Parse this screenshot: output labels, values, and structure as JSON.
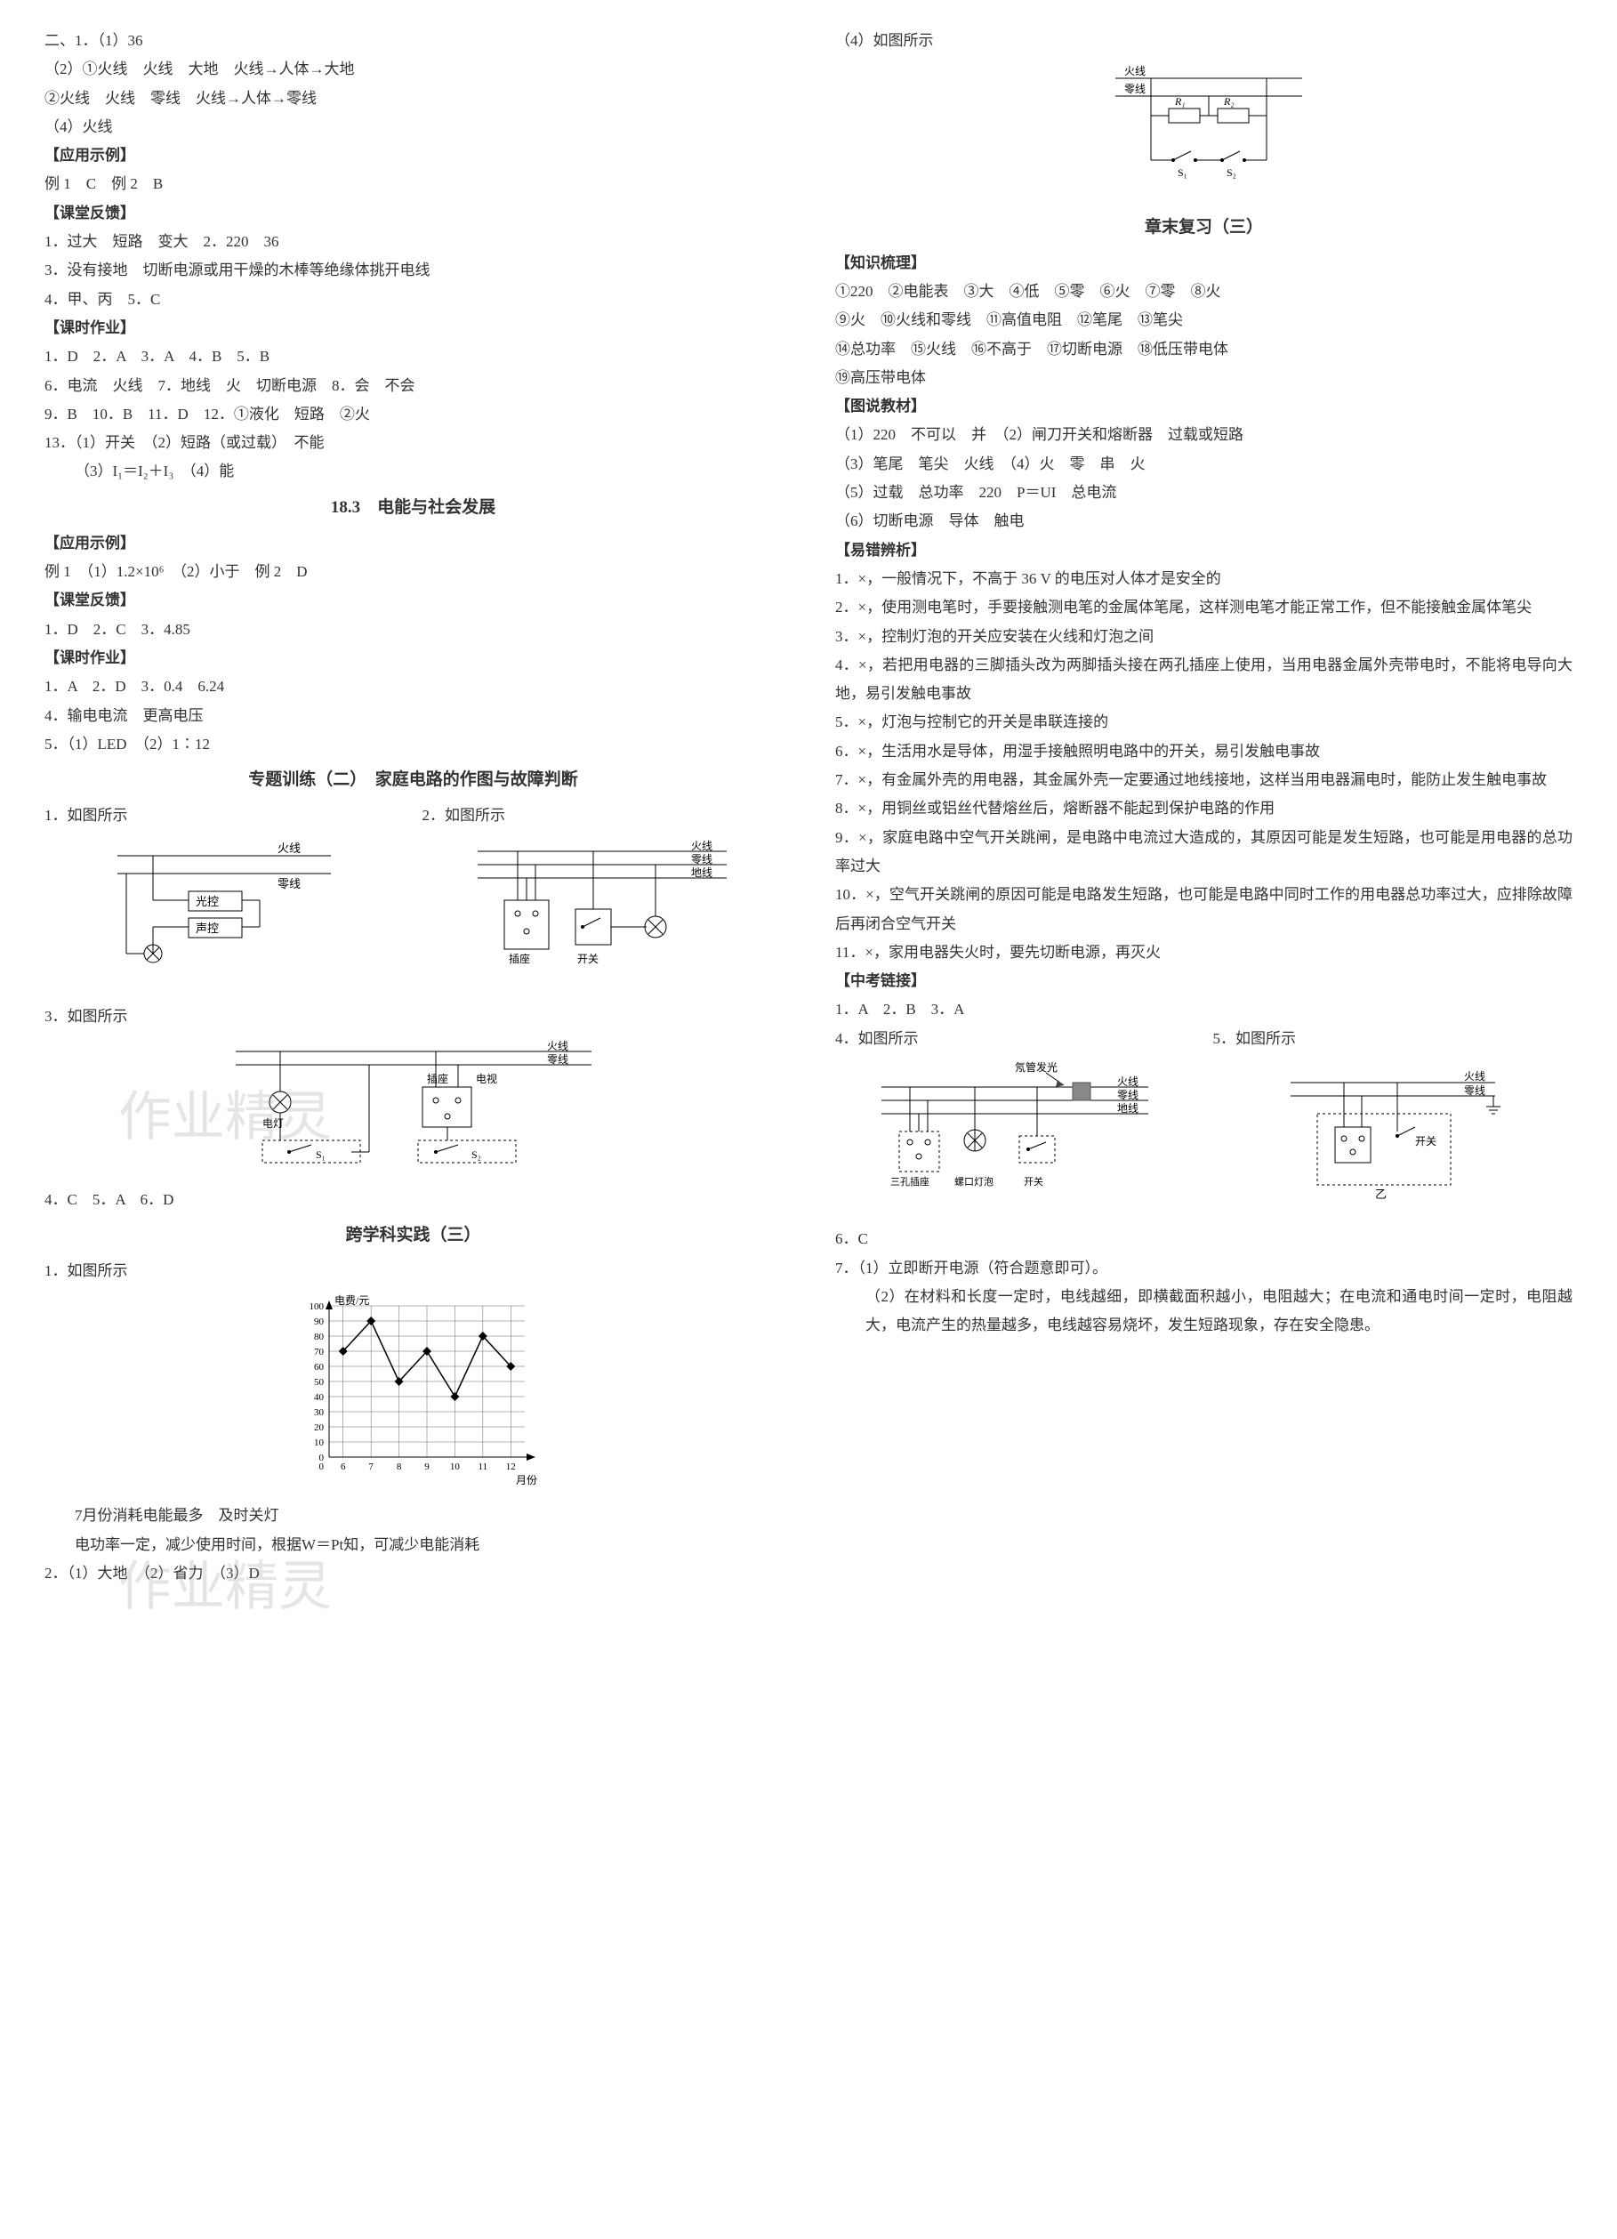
{
  "left": {
    "block1": [
      "二、1．（1）36",
      "（2）①火线　火线　大地　火线→人体→大地",
      "②火线　火线　零线　火线→人体→零线",
      "（4）火线"
    ],
    "yingyong1_head": "【应用示例】",
    "yingyong1_body": "例 1　C　例 2　B",
    "ketang1_head": "【课堂反馈】",
    "ketang1_lines": [
      "1．过大　短路　变大　2．220　36",
      "3．没有接地　切断电源或用干燥的木棒等绝缘体挑开电线",
      "4．甲、丙　5．C"
    ],
    "keshi1_head": "【课时作业】",
    "keshi1_lines": [
      "1．D　2．A　3．A　4．B　5．B",
      "6．电流　火线　7．地线　火　切断电源　8．会　不会",
      "9．B　10．B　11．D　12．①液化　短路　②火",
      "13．（1）开关　（2）短路（或过载）　不能",
      "（3）I₁＝I₂＋I₃　（4）能"
    ],
    "title183": "18.3　电能与社会发展",
    "yingyong2_head": "【应用示例】",
    "yingyong2_body": "例 1　（1）1.2×10⁶　（2）小于　例 2　D",
    "ketang2_head": "【课堂反馈】",
    "ketang2_body": "1．D　2．C　3．4.85",
    "keshi2_head": "【课时作业】",
    "keshi2_lines": [
      "1．A　2．D　3．0.4　6.24",
      "4．输电电流　更高电压",
      "5．（1）LED　（2）1∶12"
    ],
    "title_zt2": "专题训练（二）　家庭电路的作图与故障判断",
    "q1": "1．如图所示",
    "q2": "2．如图所示",
    "q3": "3．如图所示",
    "q4line": "4．C　5．A　6．D",
    "title_kxk3": "跨学科实践（三）",
    "kxk_q1": "1．如图所示",
    "kxk_notes": [
      "7月份消耗电能最多　及时关灯",
      "电功率一定，减少使用时间，根据W＝Pt知，可减少电能消耗"
    ],
    "kxk_q2": "2．（1）大地　（2）省力　（3）D"
  },
  "right": {
    "q4": "（4）如图所示",
    "title_zm3": "章末复习（三）",
    "zhishi_head": "【知识梳理】",
    "zhishi_lines": [
      "①220　②电能表　③大　④低　⑤零　⑥火　⑦零　⑧火",
      "⑨火　⑩火线和零线　⑪高值电阻　⑫笔尾　⑬笔尖",
      "⑭总功率　⑮火线　⑯不高于　⑰切断电源　⑱低压带电体",
      "⑲高压带电体"
    ],
    "tushuo_head": "【图说教材】",
    "tushuo_lines": [
      "（1）220　不可以　并　（2）闸刀开关和熔断器　过载或短路",
      "（3）笔尾　笔尖　火线　（4）火　零　串　火",
      "（5）过载　总功率　220　P＝UI　总电流",
      "（6）切断电源　导体　触电"
    ],
    "yicuo_head": "【易错辨析】",
    "yicuo_items": [
      {
        "n": "1．",
        "mark": "×",
        "t": "，一般情况下，不高于 36 V 的电压对人体才是安全的"
      },
      {
        "n": "2．",
        "mark": "×",
        "t": "，使用测电笔时，手要接触测电笔的金属体笔尾，这样测电笔才能正常工作，但不能接触金属体笔尖"
      },
      {
        "n": "3．",
        "mark": "×",
        "t": "，控制灯泡的开关应安装在火线和灯泡之间"
      },
      {
        "n": "4．",
        "mark": "×",
        "t": "，若把用电器的三脚插头改为两脚插头接在两孔插座上使用，当用电器金属外壳带电时，不能将电导向大地，易引发触电事故"
      },
      {
        "n": "5．",
        "mark": "×",
        "t": "，灯泡与控制它的开关是串联连接的"
      },
      {
        "n": "6．",
        "mark": "×",
        "t": "，生活用水是导体，用湿手接触照明电路中的开关，易引发触电事故"
      },
      {
        "n": "7．",
        "mark": "×",
        "t": "，有金属外壳的用电器，其金属外壳一定要通过地线接地，这样当用电器漏电时，能防止发生触电事故"
      },
      {
        "n": "8．",
        "mark": "×",
        "t": "，用铜丝或铝丝代替熔丝后，熔断器不能起到保护电路的作用"
      },
      {
        "n": "9．",
        "mark": "×",
        "t": "，家庭电路中空气开关跳闸，是电路中电流过大造成的，其原因可能是发生短路，也可能是用电器的总功率过大"
      },
      {
        "n": "10．",
        "mark": "×",
        "t": "，空气开关跳闸的原因可能是电路发生短路，也可能是电路中同时工作的用电器总功率过大，应排除故障后再闭合空气开关"
      },
      {
        "n": "11．",
        "mark": "×",
        "t": "，家用电器失火时，要先切断电源，再灭火"
      }
    ],
    "zhongkao_head": "【中考链接】",
    "zk_line1": "1．A　2．B　3．A",
    "zk_q4": "4．如图所示",
    "zk_q5": "5．如图所示",
    "zk_line6": "6．C",
    "zk_q7_lines": [
      "7．（1）立即断开电源（符合题意即可）。",
      "（2）在材料和长度一定时，电线越细，即横截面积越小，电阻越大；在电流和通电时间一定时，电阻越大，电流产生的热量越多，电线越容易烧坏，发生短路现象，存在安全隐患。"
    ]
  },
  "figs": {
    "circuit1_labels": {
      "huo": "火线",
      "ling": "零线",
      "guang": "光控",
      "sheng": "声控"
    },
    "circuit2_labels": {
      "huo": "火线",
      "ling": "零线",
      "di": "地线",
      "chazuo": "插座",
      "kaiguan": "开关"
    },
    "circuit3_labels": {
      "huo": "火线",
      "ling": "零线",
      "di": "电视",
      "deng": "电灯",
      "chazuo": "插座",
      "s1": "S₁",
      "s2": "S₂"
    },
    "circuit4_labels": {
      "huo": "火线",
      "ling": "零线",
      "r1": "R₁",
      "r2": "R₂",
      "s1": "S₁",
      "s2": "S₂"
    },
    "chart": {
      "type": "line",
      "ylabel": "电费/元",
      "xlabel": "月份",
      "x": [
        6,
        7,
        8,
        9,
        10,
        11,
        12
      ],
      "y": [
        70,
        90,
        50,
        70,
        40,
        80,
        60
      ],
      "ytick": [
        0,
        10,
        20,
        30,
        40,
        50,
        60,
        70,
        80,
        90,
        100
      ],
      "xtick": [
        0,
        6,
        7,
        8,
        9,
        10,
        11,
        12
      ],
      "grid_color": "#666",
      "line_color": "#000",
      "marker": "diamond",
      "bg": "#ffffff"
    },
    "zk_left_labels": {
      "ne": "氖管发光",
      "huo": "火线",
      "ling": "零线",
      "di": "地线",
      "san": "三孔插座",
      "luo": "螺口灯泡",
      "kg": "开关"
    },
    "zk_right_labels": {
      "huo": "火线",
      "ling": "零线",
      "kg": "开关",
      "yi": "乙"
    }
  },
  "watermarks": {
    "wm1": "作业精灵",
    "wm2": "作业精灵"
  }
}
